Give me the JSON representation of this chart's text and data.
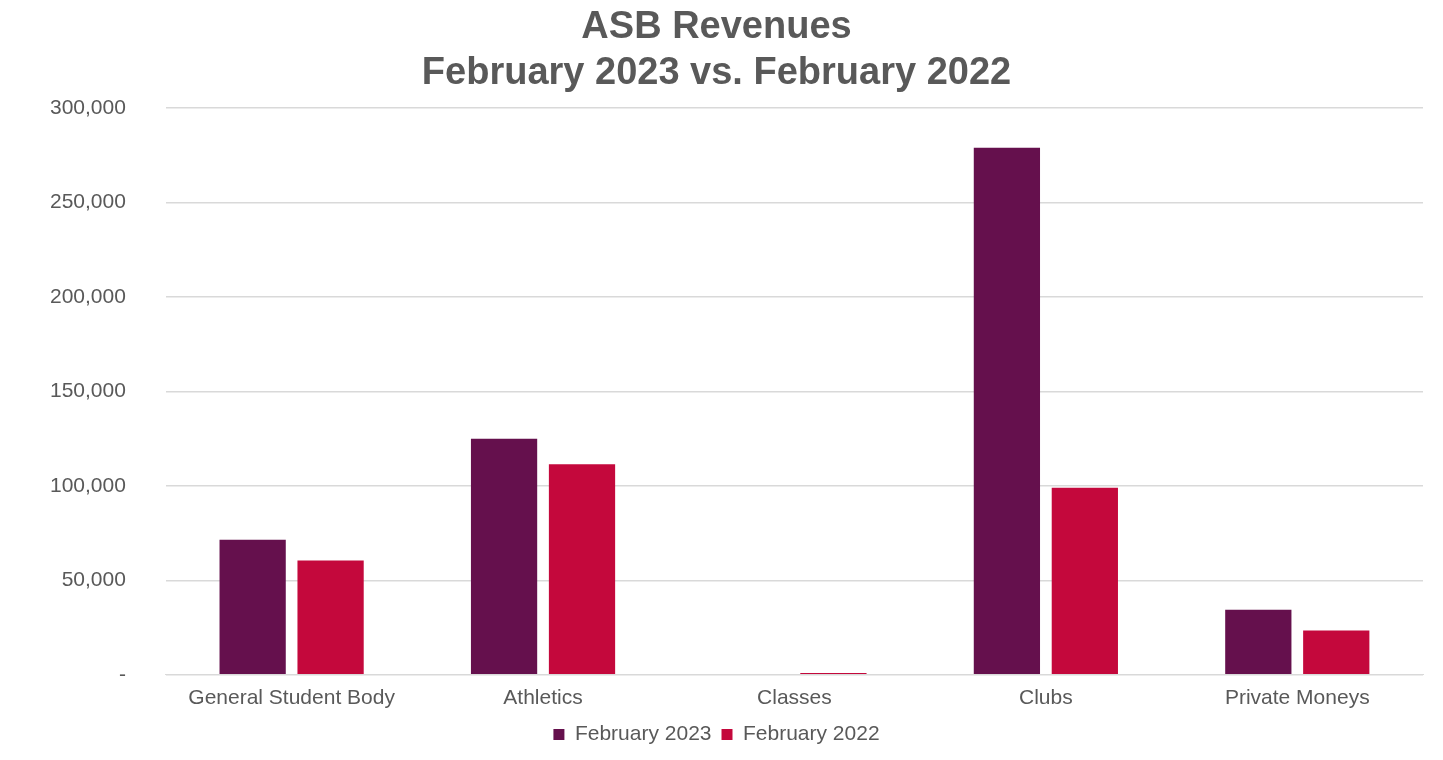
{
  "chart_data": {
    "type": "bar",
    "title": "ASB Revenues\nFebruary 2023 vs. February 2022",
    "categories": [
      "General Student Body",
      "Athletics",
      "Classes",
      "Clubs",
      "Private Moneys"
    ],
    "series": [
      {
        "name": "February 2023",
        "color": "#65104d",
        "values": [
          71500,
          125000,
          0,
          279000,
          34500
        ]
      },
      {
        "name": "February 2022",
        "color": "#c4083c",
        "values": [
          60500,
          111500,
          1000,
          99000,
          23500
        ]
      }
    ],
    "ylim": [
      0,
      300000
    ],
    "yticks": [
      {
        "value": 0,
        "label": "-"
      },
      {
        "value": 50000,
        "label": "50,000"
      },
      {
        "value": 100000,
        "label": "100,000"
      },
      {
        "value": 150000,
        "label": "150,000"
      },
      {
        "value": 200000,
        "label": "200,000"
      },
      {
        "value": 250000,
        "label": "250,000"
      },
      {
        "value": 300000,
        "label": "300,000"
      }
    ],
    "grid": "y",
    "legend": "bottom"
  }
}
